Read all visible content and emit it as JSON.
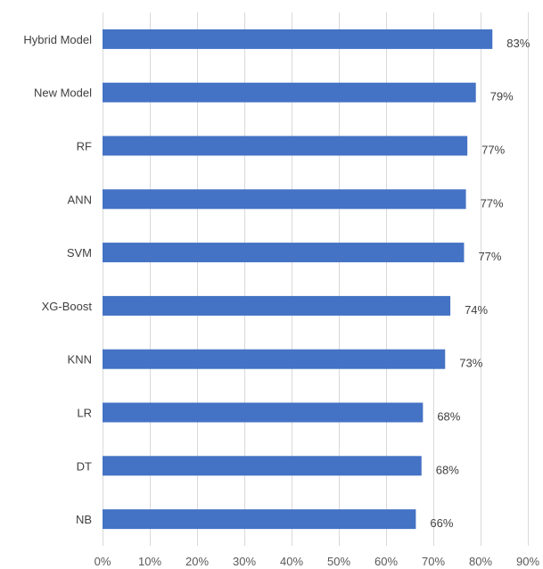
{
  "chart_data": {
    "type": "bar",
    "orientation": "horizontal",
    "categories": [
      "Hybrid Model",
      "New Model",
      "RF",
      "ANN",
      "SVM",
      "XG-Boost",
      "KNN",
      "LR",
      "DT",
      "NB"
    ],
    "values": [
      0.825,
      0.79,
      0.772,
      0.769,
      0.765,
      0.736,
      0.725,
      0.678,
      0.675,
      0.663
    ],
    "value_labels": [
      "83%",
      "79%",
      "77%",
      "77%",
      "77%",
      "74%",
      "73%",
      "68%",
      "68%",
      "66%"
    ],
    "x_ticks": [
      0,
      0.1,
      0.2,
      0.3,
      0.4,
      0.5,
      0.6,
      0.7,
      0.8,
      0.9
    ],
    "x_tick_labels": [
      "0%",
      "10%",
      "20%",
      "30%",
      "40%",
      "50%",
      "60%",
      "70%",
      "80%",
      "90%"
    ],
    "xlim": [
      0,
      0.9
    ],
    "grid": "vertical",
    "legend": "none",
    "colors": {
      "bar": "#4472C4",
      "grid": "#D9D9D9",
      "text": "#404040",
      "axis_text": "#595959"
    }
  }
}
